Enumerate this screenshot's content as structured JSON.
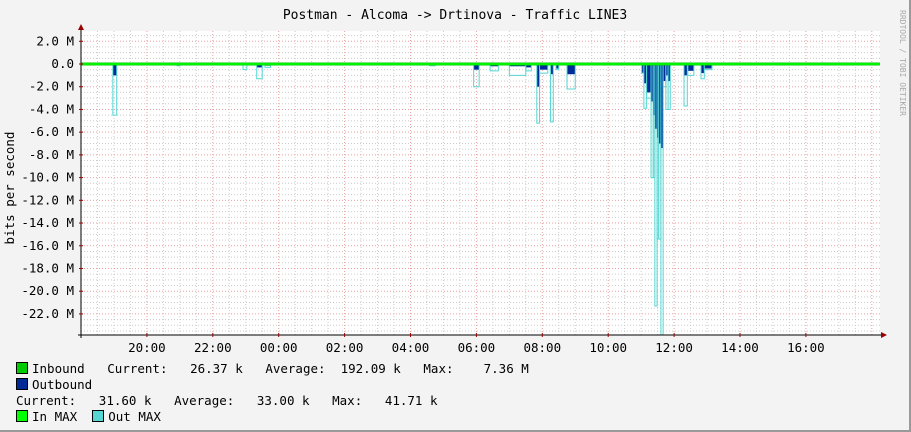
{
  "chart_data": {
    "type": "area",
    "title": "Postman - Alcoma -> Drtinova - Traffic LINE3",
    "ylabel": "bits per second",
    "xlabel": "",
    "watermark": "RRDTOOL / TOBI OETIKER",
    "x_range": [
      "18:00",
      "18:15"
    ],
    "ylim": [
      -23.9,
      2.9
    ],
    "y_unit": "M",
    "grid": true,
    "x_ticks": [
      "20:00",
      "22:00",
      "00:00",
      "02:00",
      "04:00",
      "06:00",
      "08:00",
      "10:00",
      "12:00",
      "14:00",
      "16:00"
    ],
    "y_ticks": [
      {
        "v": 2,
        "label": "2.0 M"
      },
      {
        "v": 0,
        "label": "0.0"
      },
      {
        "v": -2,
        "label": "-2.0 M"
      },
      {
        "v": -4,
        "label": "-4.0 M"
      },
      {
        "v": -6,
        "label": "-6.0 M"
      },
      {
        "v": -8,
        "label": "-8.0 M"
      },
      {
        "v": -10,
        "label": "-10.0 M"
      },
      {
        "v": -12,
        "label": "-12.0 M"
      },
      {
        "v": -14,
        "label": "-14.0 M"
      },
      {
        "v": -16,
        "label": "-16.0 M"
      },
      {
        "v": -18,
        "label": "-18.0 M"
      },
      {
        "v": -20,
        "label": "-20.0 M"
      },
      {
        "v": -22,
        "label": "-22.0 M"
      }
    ],
    "colors": {
      "inbound": "#00cc00",
      "outbound": "#002a97",
      "in_max": "#00ff00",
      "out_max": "#55d6d3",
      "grid_minor": "#cccccc",
      "grid_major": "#e8a0a0",
      "axis": "#990000"
    },
    "series_note_columns": [
      "start",
      "end",
      "outbound_M",
      "out_max_M"
    ],
    "outbound_segments": [
      [
        "18:58",
        "19:05",
        1.0,
        4.5
      ],
      [
        "20:55",
        "21:00",
        0.1,
        0.15
      ],
      [
        "22:55",
        "23:02",
        0.1,
        0.5
      ],
      [
        "23:20",
        "23:30",
        0.3,
        1.3
      ],
      [
        "23:35",
        "23:45",
        0.15,
        0.3
      ],
      [
        "04:35",
        "04:45",
        0.1,
        0.15
      ],
      [
        "05:55",
        "06:05",
        0.5,
        2.0
      ],
      [
        "06:25",
        "06:40",
        0.2,
        0.6
      ],
      [
        "07:00",
        "07:30",
        0.2,
        1.0
      ],
      [
        "07:30",
        "07:40",
        0.3,
        0.6
      ],
      [
        "07:50",
        "07:55",
        2.0,
        5.2
      ],
      [
        "07:55",
        "08:10",
        0.5,
        0.8
      ],
      [
        "08:15",
        "08:20",
        0.9,
        5.1
      ],
      [
        "08:25",
        "08:30",
        0.4,
        0.5
      ],
      [
        "08:45",
        "09:00",
        0.9,
        2.2
      ],
      [
        "11:01",
        "11:05",
        0.8,
        0.8
      ],
      [
        "11:05",
        "11:10",
        1.7,
        3.9
      ],
      [
        "11:10",
        "11:18",
        2.5,
        3.0
      ],
      [
        "11:18",
        "11:22",
        3.3,
        10.0
      ],
      [
        "11:22",
        "11:25",
        4.5,
        10.0
      ],
      [
        "11:25",
        "11:29",
        5.7,
        21.3
      ],
      [
        "11:29",
        "11:32",
        6.5,
        15.4
      ],
      [
        "11:32",
        "11:36",
        7.0,
        15.4
      ],
      [
        "11:36",
        "11:40",
        7.4,
        24.0
      ],
      [
        "11:40",
        "11:45",
        1.5,
        2.0
      ],
      [
        "11:45",
        "11:49",
        1.0,
        4.0
      ],
      [
        "11:49",
        "11:53",
        1.5,
        4.0
      ],
      [
        "12:18",
        "12:24",
        1.0,
        3.7
      ],
      [
        "12:25",
        "12:36",
        0.6,
        1.0
      ],
      [
        "12:49",
        "12:55",
        0.8,
        1.3
      ],
      [
        "12:55",
        "13:09",
        0.4,
        0.5
      ]
    ],
    "legend": {
      "inbound": {
        "name": "Inbound",
        "current_label": "Current:",
        "current": "26.37 k",
        "average_label": "Average:",
        "average": "192.09 k",
        "max_label": "Max:",
        "max": "7.36 M"
      },
      "outbound": {
        "name": "Outbound",
        "current_label": "Current:",
        "current": "31.60 k",
        "average_label": "Average:",
        "average": "33.00 k",
        "max_label": "Max:",
        "max": "41.71 k"
      },
      "in_max": {
        "name": "In MAX"
      },
      "out_max": {
        "name": "Out MAX"
      }
    }
  }
}
